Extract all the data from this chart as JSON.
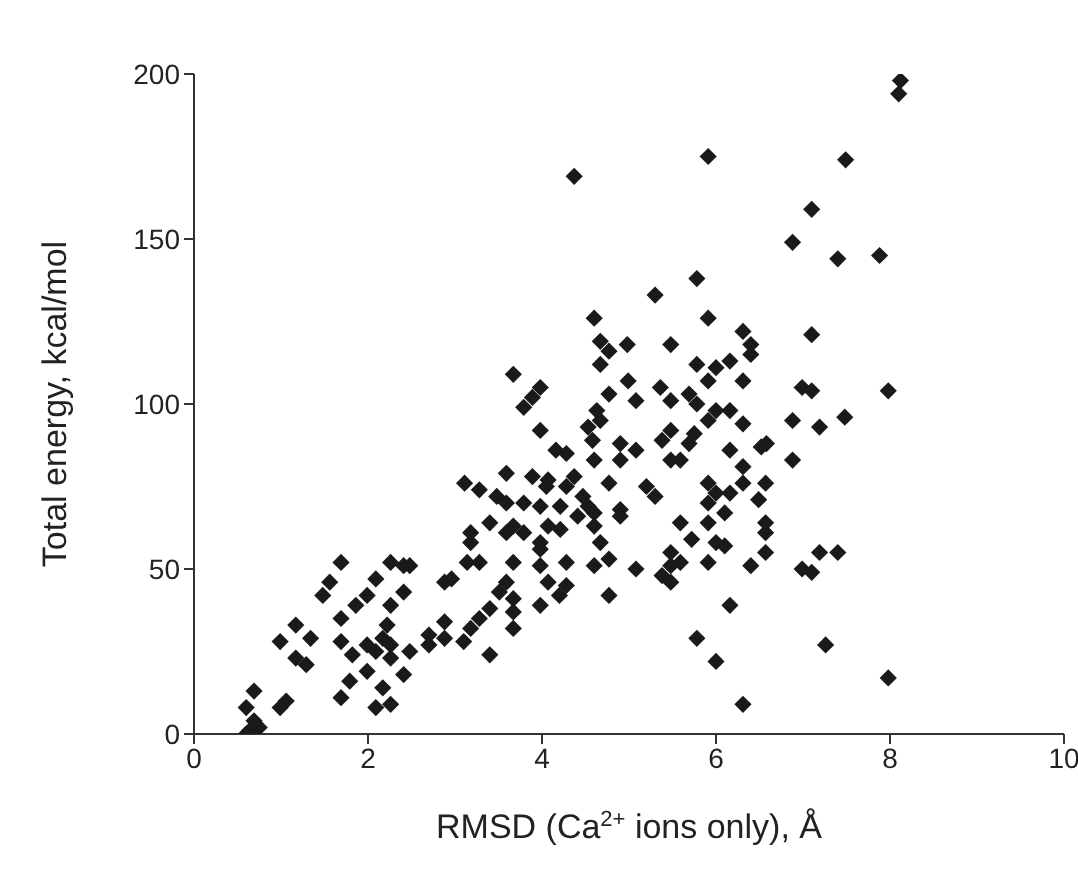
{
  "chart_data": {
    "type": "scatter",
    "xlabel": "RMSD (Ca$^{2+}$ ions only), Å",
    "ylabel": "Total energy, kcal/mol",
    "xlim": [
      0,
      10
    ],
    "xticks": [
      0,
      2,
      4,
      6,
      8,
      10
    ],
    "ylim": [
      0,
      200
    ],
    "yticks": [
      0,
      50,
      100,
      150,
      200
    ],
    "grid": false,
    "legend": false,
    "marker": "diamond",
    "series": [
      {
        "color": "#1a1a1a",
        "x": [
          8.12,
          8.1,
          5.91,
          4.37,
          7.49,
          7.1,
          6.88,
          7.4,
          7.88,
          5.78,
          5.3,
          4.6,
          5.91,
          6.31,
          6.4,
          6.4,
          4.67,
          4.77,
          4.98,
          5.48,
          7.1,
          4.67,
          6.16,
          5.78,
          6.0,
          3.67,
          6.31,
          5.91,
          4.99,
          3.98,
          3.89,
          4.77,
          5.08,
          5.36,
          5.48,
          5.69,
          5.78,
          6.99,
          7.1,
          7.98,
          3.79,
          4.63,
          4.67,
          6.0,
          6.16,
          5.91,
          6.88,
          7.48,
          7.19,
          6.31,
          3.98,
          4.53,
          5.48,
          5.38,
          5.75,
          5.69,
          4.58,
          4.9,
          5.08,
          4.16,
          4.28,
          6.16,
          6.52,
          6.58,
          4.9,
          5.48,
          5.59,
          6.88,
          4.6,
          6.31,
          3.59,
          3.89,
          4.07,
          3.11,
          3.28,
          4.37,
          4.77,
          5.2,
          5.3,
          5.91,
          6.31,
          6.57,
          6.0,
          6.16,
          4.05,
          4.28,
          3.48,
          3.59,
          3.79,
          3.98,
          4.21,
          4.47,
          4.53,
          4.6,
          4.9,
          5.91,
          6.1,
          6.49,
          3.4,
          3.18,
          3.18,
          3.59,
          3.67,
          3.79,
          4.07,
          4.21,
          4.41,
          4.6,
          4.9,
          5.59,
          5.91,
          6.57,
          6.57,
          3.98,
          3.98,
          5.72,
          6.0,
          6.1,
          3.14,
          3.28,
          3.67,
          4.28,
          4.67,
          4.77,
          4.6,
          3.98,
          5.08,
          5.48,
          5.48,
          5.59,
          5.38,
          5.48,
          5.91,
          6.4,
          6.57,
          6.99,
          7.1,
          7.19,
          7.4,
          6.16,
          5.78,
          6.0,
          6.31,
          7.26,
          7.98,
          4.07,
          4.28,
          4.2,
          3.98,
          4.77,
          3.59,
          3.51,
          3.67,
          3.67,
          3.4,
          3.28,
          3.18,
          3.1,
          3.67,
          3.4,
          2.88,
          2.96,
          2.88,
          2.88,
          2.7,
          2.7,
          2.48,
          2.41,
          2.48,
          2.26,
          2.41,
          2.26,
          2.09,
          1.99,
          1.86,
          1.69,
          1.56,
          1.48,
          1.69,
          2.22,
          2.17,
          2.26,
          2.09,
          1.99,
          1.69,
          1.82,
          2.26,
          2.41,
          1.99,
          1.79,
          2.17,
          1.69,
          2.09,
          2.26,
          1.17,
          0.99,
          1.34,
          1.17,
          1.29,
          0.69,
          1.06,
          0.99,
          0.6,
          0.69,
          0.75,
          0.6,
          0.64
        ],
        "values": [
          198,
          194,
          175,
          169,
          174,
          159,
          149,
          144,
          145,
          138,
          133,
          126,
          126,
          122,
          118,
          115,
          119,
          116,
          118,
          118,
          121,
          112,
          113,
          112,
          111,
          109,
          107,
          107,
          107,
          105,
          102,
          103,
          101,
          105,
          101,
          103,
          100,
          105,
          104,
          104,
          99,
          98,
          95,
          98,
          98,
          95,
          95,
          96,
          93,
          94,
          92,
          93,
          92,
          89,
          91,
          88,
          89,
          88,
          86,
          86,
          85,
          86,
          87,
          88,
          83,
          83,
          83,
          83,
          83,
          81,
          79,
          78,
          77,
          76,
          74,
          78,
          76,
          75,
          72,
          76,
          76,
          76,
          73,
          73,
          75,
          75,
          72,
          70,
          70,
          69,
          69,
          72,
          69,
          67,
          68,
          70,
          67,
          71,
          64,
          61,
          58,
          61,
          63,
          61,
          63,
          62,
          66,
          63,
          66,
          64,
          64,
          64,
          61,
          58,
          56,
          59,
          58,
          57,
          52,
          52,
          52,
          52,
          58,
          53,
          51,
          51,
          50,
          55,
          51,
          52,
          48,
          46,
          52,
          51,
          55,
          50,
          49,
          55,
          55,
          39,
          29,
          22,
          9,
          27,
          17,
          46,
          45,
          42,
          39,
          42,
          46,
          43,
          41,
          37,
          38,
          35,
          32,
          28,
          32,
          24,
          46,
          47,
          34,
          29,
          30,
          27,
          25,
          51,
          51,
          52,
          43,
          39,
          47,
          42,
          39,
          52,
          46,
          42,
          35,
          33,
          29,
          27,
          25,
          27,
          28,
          24,
          23,
          18,
          19,
          16,
          14,
          11,
          8,
          9,
          33,
          28,
          29,
          23,
          21,
          13,
          10,
          8,
          8,
          4,
          2,
          0,
          1
        ]
      }
    ]
  }
}
